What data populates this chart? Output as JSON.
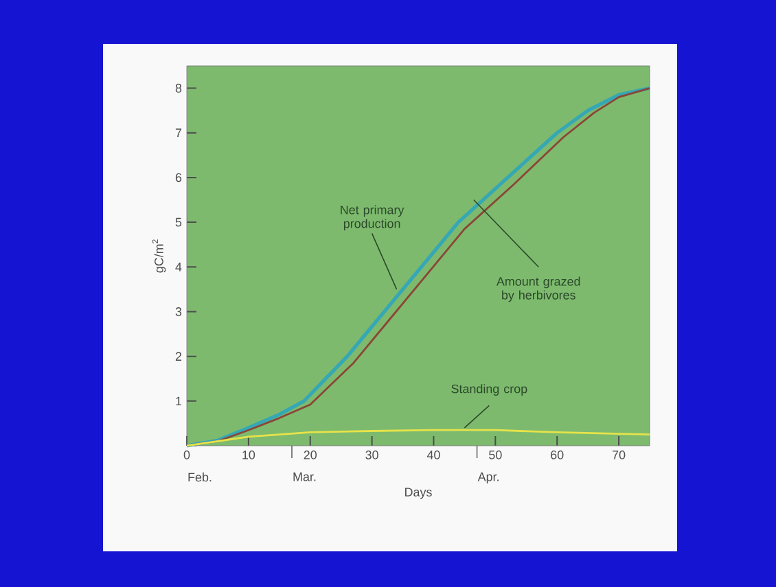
{
  "chart_data": {
    "type": "line",
    "xlabel": "Days",
    "ylabel": "gC/m$^{2}$",
    "xlim": [
      0,
      75
    ],
    "ylim": [
      0,
      8.5
    ],
    "xticks": [
      0,
      10,
      20,
      30,
      40,
      50,
      60,
      70
    ],
    "yticks": [
      {
        "value": 0,
        "label": null
      },
      1,
      2,
      3,
      4,
      5,
      6,
      7,
      8
    ],
    "grid": false,
    "marker": "none",
    "line_style": "solid",
    "series": [
      {
        "color": "#35a7b5",
        "x": [
          0,
          5,
          10,
          15,
          19,
          26,
          32,
          38,
          44,
          52,
          60,
          65,
          70,
          75
        ],
        "values": [
          0,
          0.12,
          0.4,
          0.7,
          1,
          2,
          3,
          4,
          5,
          6,
          7,
          7.5,
          7.85,
          8
        ]
      },
      {
        "color": "#8a4636",
        "x": [
          0,
          5,
          10,
          15,
          20,
          27,
          33,
          39,
          45,
          53,
          61,
          66,
          70,
          75
        ],
        "values": [
          0,
          0.1,
          0.35,
          0.62,
          0.92,
          1.85,
          2.85,
          3.85,
          4.85,
          5.85,
          6.9,
          7.45,
          7.8,
          8
        ]
      },
      {
        "color": "#e6e34a",
        "x": [
          0,
          10,
          20,
          30,
          40,
          50,
          60,
          75
        ],
        "values": [
          0,
          0.2,
          0.3,
          0.33,
          0.35,
          0.35,
          0.3,
          0.25
        ]
      }
    ],
    "annotations": [
      {
        "text": "Net primary production",
        "x": 34,
        "y": 3.5
      },
      {
        "text": "Amount grazed by herbivores",
        "x": 46.5,
        "y": 5.5
      },
      {
        "text": "Standing crop",
        "x": 45,
        "y": 0.4
      },
      "Feb.",
      "Mar.",
      "Apr."
    ]
  }
}
